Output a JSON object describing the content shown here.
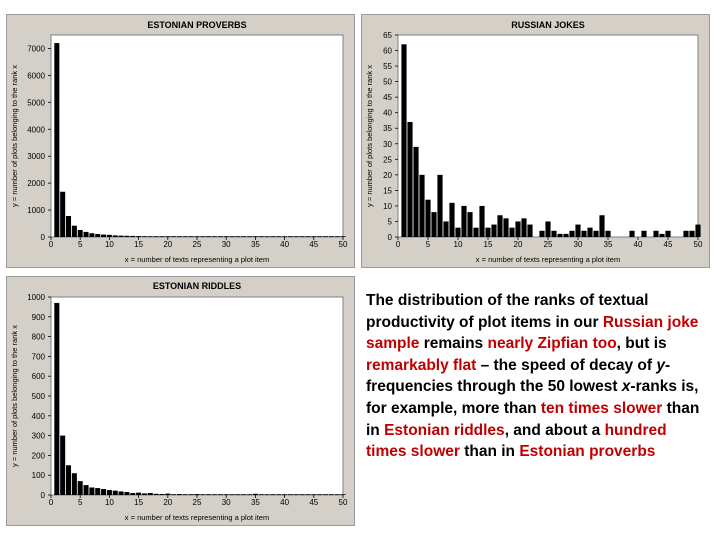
{
  "chart_data": [
    {
      "type": "bar",
      "title": "ESTONIAN PROVERBS",
      "xlabel": "x = number of texts representing a plot item",
      "ylabel": "y = number of plots belonging to the rank x",
      "xlim": [
        0,
        50
      ],
      "ylim": [
        0,
        7500
      ],
      "xticks": [
        0,
        5,
        10,
        15,
        20,
        25,
        30,
        35,
        40,
        45,
        50
      ],
      "yticks": [
        0,
        1000,
        2000,
        3000,
        4000,
        5000,
        6000,
        7000
      ],
      "x": [
        1,
        2,
        3,
        4,
        5,
        6,
        7,
        8,
        9,
        10,
        11,
        12,
        13,
        14,
        15,
        16,
        17,
        18,
        19,
        20,
        21,
        22,
        23,
        24,
        25,
        26,
        27,
        28,
        29,
        30,
        31,
        32,
        33,
        34,
        35,
        36,
        37,
        38,
        39,
        40,
        41,
        42,
        43,
        44,
        45,
        46,
        47,
        48,
        49,
        50
      ],
      "values": [
        7200,
        1680,
        780,
        420,
        260,
        190,
        140,
        110,
        90,
        80,
        60,
        50,
        45,
        40,
        35,
        30,
        28,
        25,
        22,
        20,
        18,
        16,
        15,
        14,
        13,
        12,
        11,
        10,
        9,
        8,
        8,
        7,
        7,
        6,
        6,
        5,
        5,
        5,
        4,
        4,
        4,
        3,
        3,
        3,
        3,
        2,
        2,
        2,
        2,
        2
      ],
      "color": "#000000"
    },
    {
      "type": "bar",
      "title": "RUSSIAN JOKES",
      "xlabel": "x = number of texts representing a plot item",
      "ylabel": "y = number of plots belonging to the rank x",
      "xlim": [
        0,
        50
      ],
      "ylim": [
        0,
        65
      ],
      "xticks": [
        0,
        5,
        10,
        15,
        20,
        25,
        30,
        35,
        40,
        45,
        50
      ],
      "yticks": [
        0,
        5,
        10,
        15,
        20,
        25,
        30,
        35,
        40,
        45,
        50,
        55,
        60,
        65
      ],
      "x": [
        1,
        2,
        3,
        4,
        5,
        6,
        7,
        8,
        9,
        10,
        11,
        12,
        13,
        14,
        15,
        16,
        17,
        18,
        19,
        20,
        21,
        22,
        23,
        24,
        25,
        26,
        27,
        28,
        29,
        30,
        31,
        32,
        33,
        34,
        35,
        36,
        37,
        38,
        39,
        40,
        41,
        42,
        43,
        44,
        45,
        46,
        47,
        48,
        49,
        50
      ],
      "values": [
        62,
        37,
        29,
        20,
        12,
        8,
        20,
        5,
        11,
        3,
        10,
        8,
        3,
        10,
        3,
        4,
        7,
        6,
        3,
        5,
        6,
        4,
        0,
        2,
        5,
        2,
        1,
        1,
        2,
        4,
        2,
        3,
        2,
        7,
        2,
        0,
        0,
        0,
        2,
        0,
        2,
        0,
        2,
        1,
        2,
        0,
        0,
        2,
        2,
        4
      ],
      "color": "#000000"
    },
    {
      "type": "bar",
      "title": "ESTONIAN RIDDLES",
      "xlabel": "x = number of texts representing a plot item",
      "ylabel": "y = number of plots belonging to the rank x",
      "xlim": [
        0,
        50
      ],
      "ylim": [
        0,
        1000
      ],
      "xticks": [
        0,
        5,
        10,
        15,
        20,
        25,
        30,
        35,
        40,
        45,
        50
      ],
      "yticks": [
        0,
        100,
        200,
        300,
        400,
        500,
        600,
        700,
        800,
        900,
        1000
      ],
      "x": [
        1,
        2,
        3,
        4,
        5,
        6,
        7,
        8,
        9,
        10,
        11,
        12,
        13,
        14,
        15,
        16,
        17,
        18,
        19,
        20,
        21,
        22,
        23,
        24,
        25,
        26,
        27,
        28,
        29,
        30,
        31,
        32,
        33,
        34,
        35,
        36,
        37,
        38,
        39,
        40,
        41,
        42,
        43,
        44,
        45,
        46,
        47,
        48,
        49,
        50
      ],
      "values": [
        970,
        300,
        150,
        110,
        70,
        50,
        38,
        35,
        30,
        25,
        22,
        18,
        15,
        10,
        12,
        8,
        10,
        6,
        5,
        7,
        4,
        5,
        4,
        3,
        5,
        3,
        3,
        4,
        2,
        3,
        3,
        2,
        2,
        3,
        6,
        2,
        1,
        2,
        1,
        2,
        2,
        1,
        2,
        1,
        2,
        1,
        1,
        1,
        1,
        1
      ],
      "color": "#000000"
    }
  ],
  "caption": {
    "segments": [
      {
        "text": "The distribution of the ranks of textual productivity of plot items in our ",
        "style": "plain"
      },
      {
        "text": "Russian joke sample",
        "style": "red"
      },
      {
        "text": " remains ",
        "style": "plain"
      },
      {
        "text": "nearly Zipfian too",
        "style": "red"
      },
      {
        "text": ", but is ",
        "style": "plain"
      },
      {
        "text": "remarkably flat",
        "style": "red"
      },
      {
        "text": " – the speed of decay of ",
        "style": "plain"
      },
      {
        "text": "y",
        "style": "italic"
      },
      {
        "text": "-frequencies through the 50 lowest ",
        "style": "plain"
      },
      {
        "text": "x",
        "style": "italic"
      },
      {
        "text": "-ranks is, for example, more than ",
        "style": "plain"
      },
      {
        "text": "ten times slower",
        "style": "red"
      },
      {
        "text": " than in ",
        "style": "plain"
      },
      {
        "text": "Estonian riddles",
        "style": "red"
      },
      {
        "text": ", and about a ",
        "style": "plain"
      },
      {
        "text": "hundred times slower",
        "style": "red"
      },
      {
        "text": " than in ",
        "style": "plain"
      },
      {
        "text": "Estonian proverbs",
        "style": "red"
      }
    ]
  },
  "colors": {
    "panel_bg": "#d4d0c8",
    "plot_bg": "#ffffff",
    "bar": "#000000",
    "highlight": "#c00000",
    "grid": "#e6e6e6"
  }
}
